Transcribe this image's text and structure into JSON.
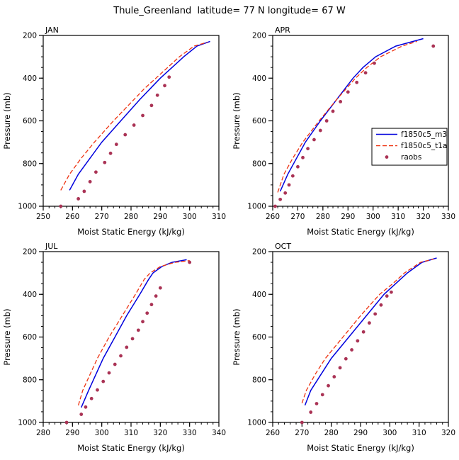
{
  "title": "Thule_Greenland  latitude= 77 N longitude= 67 W",
  "axes": {
    "x_label": "Moist Static Energy (kJ/kg)",
    "y_label": "Pressure (mb)",
    "y_range": [
      200,
      1000
    ],
    "y_ticks": [
      200,
      400,
      600,
      800,
      1000
    ],
    "y_minor_step": 50
  },
  "colors": {
    "m3": "#0000dd",
    "t1a": "#ee3311",
    "raobs": "#aa3355",
    "frame": "#000000"
  },
  "legend": {
    "entries": [
      {
        "label": "f1850c5_m3",
        "type": "line-solid",
        "color": "#0000dd"
      },
      {
        "label": "f1850c5_t1a",
        "type": "line-dashed",
        "color": "#ee3311"
      },
      {
        "label": "raobs",
        "type": "marker",
        "color": "#aa3355"
      }
    ]
  },
  "chart_data": [
    {
      "type": "line",
      "panel": "JAN",
      "x_range": [
        250,
        310
      ],
      "x_ticks": [
        250,
        260,
        270,
        280,
        290,
        300,
        310
      ],
      "x_minor_step": 2,
      "show_legend": false,
      "series": [
        {
          "name": "f1850c5_m3",
          "style": "solid",
          "color": "#0000dd",
          "pressure": [
            925,
            850,
            775,
            700,
            600,
            500,
            450,
            400,
            350,
            300,
            250,
            228
          ],
          "mse": [
            259,
            262,
            266,
            270,
            276.5,
            283,
            286.5,
            290,
            294,
            298,
            302.5,
            307
          ]
        },
        {
          "name": "f1850c5_t1a",
          "style": "dashed",
          "color": "#ee3311",
          "pressure": [
            925,
            850,
            775,
            700,
            600,
            500,
            450,
            400,
            350,
            300,
            250,
            232
          ],
          "mse": [
            256,
            259,
            263,
            267.5,
            274,
            281,
            284.5,
            288.5,
            292.5,
            296.5,
            301.5,
            306
          ]
        }
      ],
      "obs": {
        "name": "raobs",
        "pressure": [
          1000,
          965,
          930,
          885,
          840,
          795,
          752,
          710,
          665,
          620,
          575,
          528,
          480,
          435,
          395
        ],
        "mse": [
          256,
          262,
          264,
          266,
          268,
          271,
          273,
          275,
          278,
          281,
          284,
          287,
          289,
          291.5,
          293
        ]
      }
    },
    {
      "type": "line",
      "panel": "APR",
      "x_range": [
        260,
        330
      ],
      "x_ticks": [
        260,
        270,
        280,
        290,
        300,
        310,
        320,
        330
      ],
      "x_minor_step": 2,
      "show_legend": true,
      "series": [
        {
          "name": "f1850c5_m3",
          "style": "solid",
          "color": "#0000dd",
          "pressure": [
            930,
            850,
            775,
            700,
            600,
            500,
            400,
            350,
            300,
            250,
            215
          ],
          "mse": [
            263,
            266,
            269.5,
            273,
            279,
            285.5,
            292,
            296,
            301,
            309,
            320
          ]
        },
        {
          "name": "f1850c5_t1a",
          "style": "dashed",
          "color": "#ee3311",
          "pressure": [
            935,
            850,
            775,
            700,
            600,
            500,
            400,
            350,
            300,
            250,
            228
          ],
          "mse": [
            262,
            264.5,
            268,
            272,
            278.5,
            285.5,
            293,
            297.5,
            303,
            311.5,
            317.5
          ]
        }
      ],
      "obs": {
        "name": "raobs",
        "pressure": [
          1000,
          968,
          938,
          900,
          858,
          815,
          772,
          730,
          688,
          645,
          600,
          555,
          510,
          465,
          420,
          375,
          330,
          250
        ],
        "mse": [
          261,
          263,
          265,
          266.5,
          268,
          270,
          272,
          274,
          276.5,
          279,
          281.5,
          284,
          287,
          290,
          293.5,
          297,
          300.5,
          324
        ]
      }
    },
    {
      "type": "line",
      "panel": "JUL",
      "x_range": [
        280,
        340
      ],
      "x_ticks": [
        280,
        290,
        300,
        310,
        320,
        330,
        340
      ],
      "x_minor_step": 2,
      "show_legend": false,
      "series": [
        {
          "name": "f1850c5_m3",
          "style": "solid",
          "color": "#0000dd",
          "pressure": [
            930,
            850,
            775,
            700,
            600,
            500,
            400,
            330,
            300,
            270,
            250,
            238
          ],
          "mse": [
            293,
            295.5,
            298,
            300.5,
            304.5,
            308.5,
            313,
            316,
            317.5,
            320.5,
            324,
            329
          ]
        },
        {
          "name": "f1850c5_t1a",
          "style": "dashed",
          "color": "#ee3311",
          "pressure": [
            920,
            850,
            775,
            700,
            600,
            500,
            400,
            330,
            300,
            270,
            250,
            242
          ],
          "mse": [
            292,
            293.5,
            296,
            298.5,
            302.5,
            307,
            311.5,
            314.5,
            316.5,
            320,
            325,
            330
          ]
        }
      ],
      "obs": {
        "name": "raobs",
        "pressure": [
          1000,
          962,
          928,
          888,
          848,
          808,
          768,
          728,
          688,
          648,
          608,
          568,
          528,
          488,
          448,
          408,
          370,
          250
        ],
        "mse": [
          288,
          293,
          294.5,
          296.5,
          298.5,
          300.5,
          302.5,
          304.5,
          306.5,
          308.5,
          310.5,
          312.5,
          314,
          315.5,
          317,
          318.5,
          320,
          330
        ]
      }
    },
    {
      "type": "line",
      "panel": "OCT",
      "x_range": [
        260,
        320
      ],
      "x_ticks": [
        260,
        270,
        280,
        290,
        300,
        310,
        320
      ],
      "x_minor_step": 2,
      "show_legend": false,
      "series": [
        {
          "name": "f1850c5_m3",
          "style": "solid",
          "color": "#0000dd",
          "pressure": [
            920,
            850,
            775,
            700,
            600,
            500,
            400,
            350,
            300,
            250,
            230
          ],
          "mse": [
            271,
            273,
            276.5,
            280,
            286,
            292,
            298,
            302,
            306,
            311,
            316
          ]
        },
        {
          "name": "f1850c5_t1a",
          "style": "dashed",
          "color": "#ee3311",
          "pressure": [
            910,
            850,
            775,
            700,
            600,
            500,
            400,
            350,
            300,
            250,
            235
          ],
          "mse": [
            270,
            271.5,
            274.5,
            278,
            284,
            290,
            296.5,
            301,
            305,
            310.5,
            315
          ]
        }
      ],
      "obs": {
        "name": "raobs",
        "pressure": [
          1000,
          952,
          912,
          870,
          828,
          786,
          744,
          702,
          660,
          618,
          576,
          534,
          492,
          450,
          408,
          390
        ],
        "mse": [
          270,
          273,
          275,
          277,
          279,
          281,
          283,
          285,
          287,
          289,
          291,
          293,
          295,
          297,
          299,
          300.5
        ]
      }
    }
  ]
}
